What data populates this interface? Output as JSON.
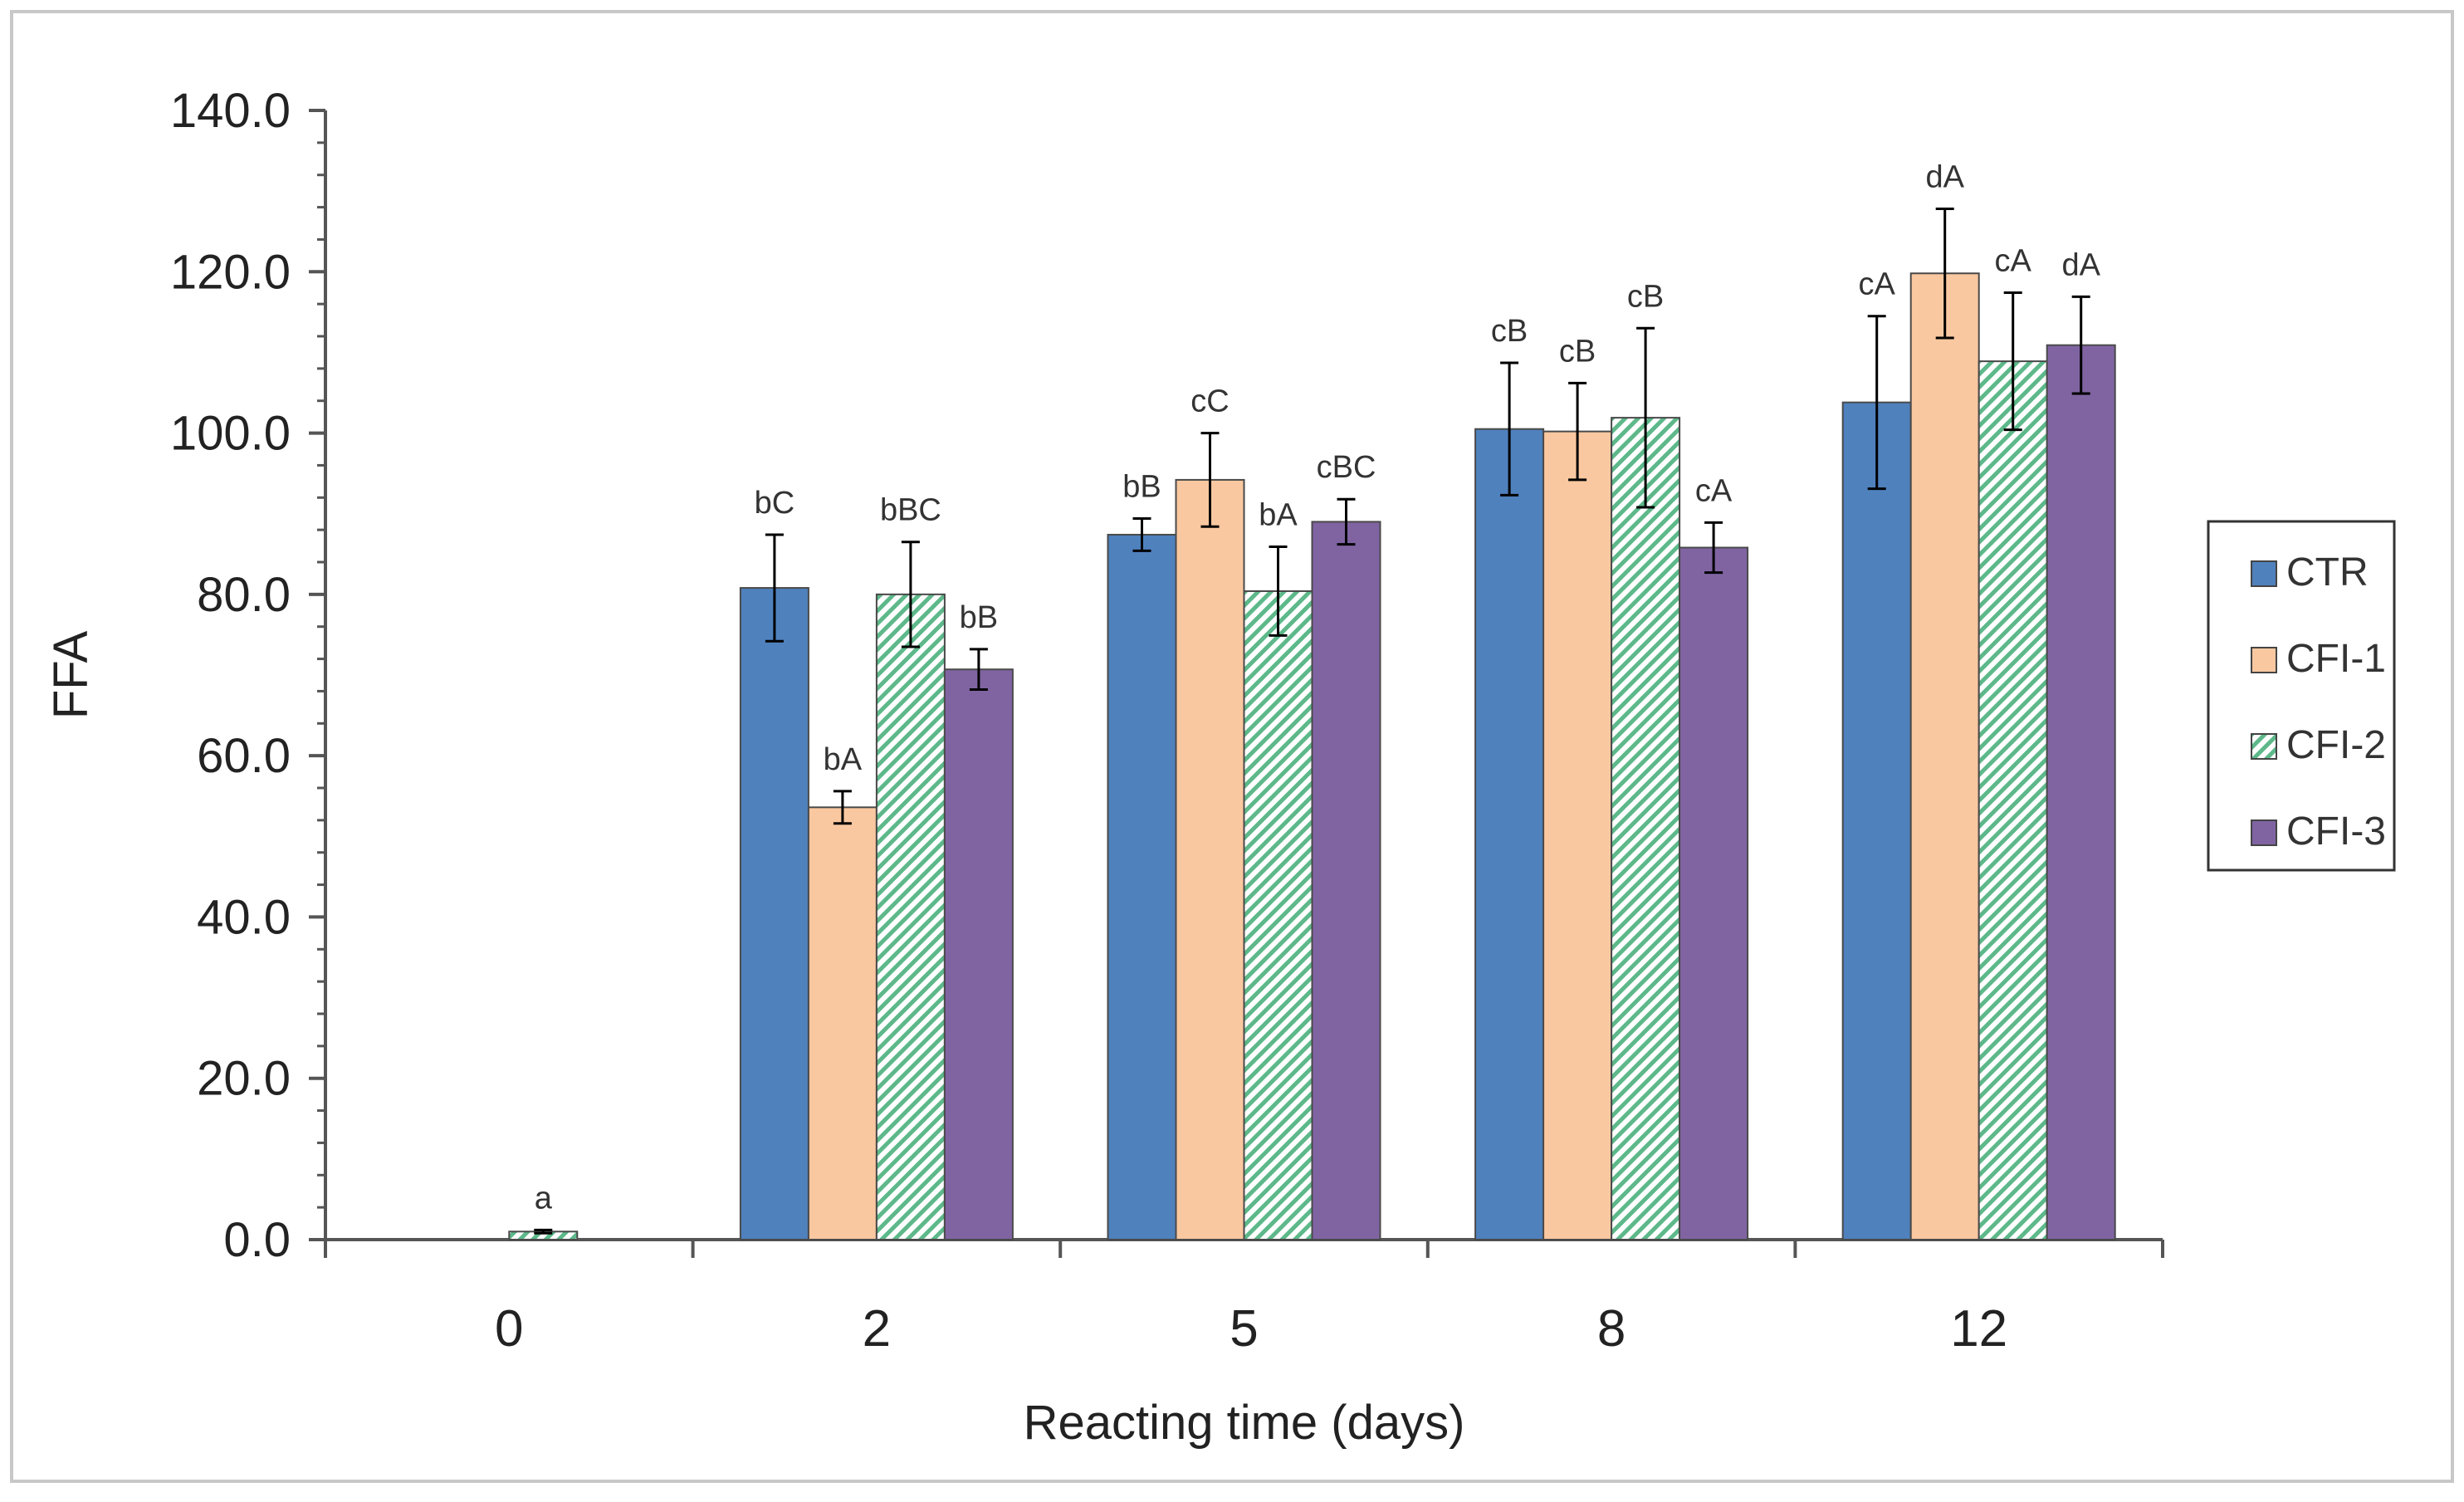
{
  "chart_data": {
    "type": "bar",
    "title": "",
    "xlabel": "Reacting time (days)",
    "ylabel": "FFA",
    "ylim": [
      0,
      140
    ],
    "yticks": [
      "0.0",
      "20.0",
      "40.0",
      "60.0",
      "80.0",
      "100.0",
      "120.0",
      "140.0"
    ],
    "categories": [
      "0",
      "2",
      "5",
      "8",
      "12"
    ],
    "legend_position": "right",
    "series": [
      {
        "name": "CTR",
        "color": "#4F81BD",
        "pattern": "solid",
        "values": [
          null,
          80.8,
          87.4,
          100.5,
          103.8
        ],
        "errors": [
          null,
          6.6,
          2.0,
          8.2,
          10.7
        ],
        "labels": [
          null,
          "bC",
          "bB",
          "cB",
          "cA"
        ]
      },
      {
        "name": "CFI-1",
        "color": "#FAC8A0",
        "pattern": "solid",
        "values": [
          null,
          53.6,
          94.2,
          100.2,
          119.8
        ],
        "errors": [
          null,
          2.0,
          5.8,
          6.0,
          8.0
        ],
        "labels": [
          null,
          "bA",
          "cC",
          "cB",
          "dA"
        ]
      },
      {
        "name": "CFI-2",
        "color": "#5DB88A",
        "pattern": "hatched",
        "values": [
          1.0,
          80.0,
          80.4,
          101.9,
          108.9
        ],
        "errors": [
          0.2,
          6.5,
          5.5,
          11.1,
          8.5
        ],
        "labels": [
          "a",
          "bBC",
          "bA",
          "cB",
          "cA"
        ]
      },
      {
        "name": "CFI-3",
        "color": "#8064A2",
        "pattern": "solid",
        "values": [
          null,
          70.7,
          89.0,
          85.8,
          110.9
        ],
        "errors": [
          null,
          2.5,
          2.8,
          3.1,
          6.0
        ],
        "labels": [
          null,
          "bB",
          "cBC",
          "cA",
          "dA"
        ]
      }
    ]
  }
}
